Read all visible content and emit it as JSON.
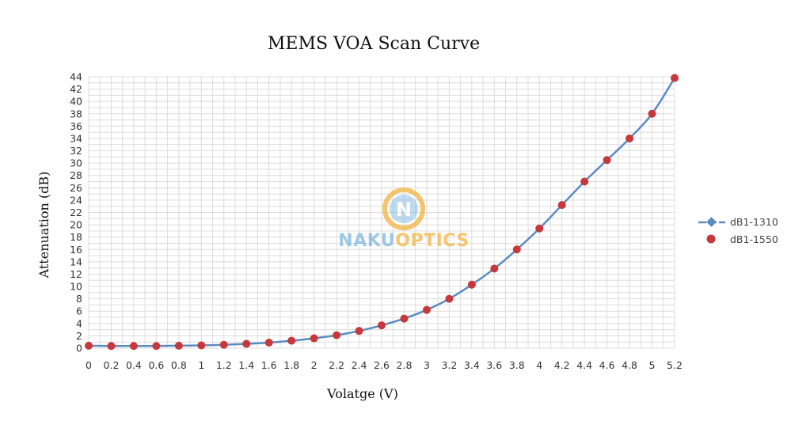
{
  "chart_data": {
    "type": "line",
    "title": "MEMS VOA Scan Curve",
    "xlabel": "Volatge (V)",
    "ylabel": "Attenuation (dB)",
    "x": [
      0,
      0.2,
      0.4,
      0.6,
      0.8,
      1,
      1.2,
      1.4,
      1.6,
      1.8,
      2,
      2.2,
      2.4,
      2.6,
      2.8,
      3,
      3.2,
      3.4,
      3.6,
      3.8,
      4,
      4.2,
      4.4,
      4.6,
      4.8,
      5,
      5.2
    ],
    "x_tick_labels": [
      "0",
      "0.2",
      "0.4",
      "0.6",
      "0.8",
      "1",
      "1.2",
      "1.4",
      "1.6",
      "1.8",
      "2",
      "2.2",
      "2.4",
      "2.6",
      "2.8",
      "3",
      "3.2",
      "3.4",
      "3.6",
      "3.8",
      "4",
      "4.2",
      "4.4",
      "4.6",
      "4.8",
      "5",
      "5.2"
    ],
    "y_tick_labels": [
      "0",
      "2",
      "4",
      "6",
      "8",
      "10",
      "12",
      "14",
      "16",
      "18",
      "20",
      "22",
      "24",
      "26",
      "28",
      "30",
      "32",
      "34",
      "36",
      "38",
      "40",
      "42",
      "44"
    ],
    "xlim": [
      0,
      5.2
    ],
    "ylim": [
      0,
      44
    ],
    "grid": true,
    "legend_position": "right",
    "series": [
      {
        "name": "dB1-1310",
        "style": "line-with-diamond-markers",
        "color": "#5b8cc0",
        "values": [
          0.4,
          0.35,
          0.35,
          0.35,
          0.4,
          0.45,
          0.55,
          0.7,
          0.9,
          1.2,
          1.6,
          2.1,
          2.8,
          3.7,
          4.8,
          6.2,
          8.0,
          10.3,
          12.9,
          16.0,
          19.4,
          23.2,
          27.0,
          30.5,
          34.0,
          38.0,
          43.8
        ]
      },
      {
        "name": "dB1-1550",
        "style": "markers",
        "color": "#c8373b",
        "values": [
          0.4,
          0.35,
          0.35,
          0.35,
          0.4,
          0.45,
          0.55,
          0.7,
          0.9,
          1.2,
          1.6,
          2.1,
          2.8,
          3.7,
          4.8,
          6.2,
          8.0,
          10.3,
          12.9,
          16.0,
          19.4,
          23.2,
          27.0,
          30.5,
          34.0,
          38.0,
          43.8
        ]
      }
    ]
  },
  "watermark": {
    "logo_letter": "N",
    "brand_part1": "NAKU",
    "brand_part2": "OPTICS",
    "color_part1": "#7fb6df",
    "color_part2": "#f2b440"
  }
}
